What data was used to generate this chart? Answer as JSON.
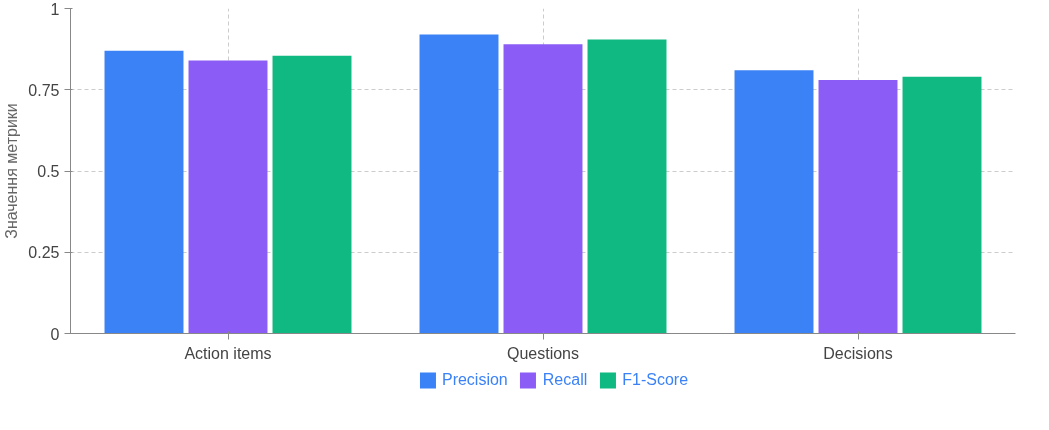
{
  "chart_data": {
    "type": "bar",
    "ylabel": "Значення метрики",
    "categories": [
      "Action items",
      "Questions",
      "Decisions"
    ],
    "series": [
      {
        "name": "Precision",
        "color": "#3b82f6",
        "values": [
          0.87,
          0.92,
          0.81
        ]
      },
      {
        "name": "Recall",
        "color": "#8b5cf6",
        "values": [
          0.84,
          0.89,
          0.78
        ]
      },
      {
        "name": "F1-Score",
        "color": "#10b981",
        "values": [
          0.855,
          0.905,
          0.79
        ]
      }
    ],
    "ylim": [
      0,
      1
    ],
    "yticks": [
      0,
      {
        "value": 0.25,
        "label": "0.25"
      },
      {
        "value": 0.5,
        "label": "0.5"
      },
      {
        "value": 0.75,
        "label": "0.75"
      },
      1
    ],
    "grid": true,
    "legend": "bottom"
  }
}
